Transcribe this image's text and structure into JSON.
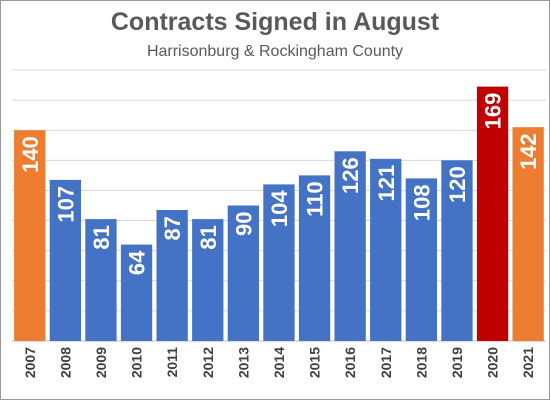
{
  "chart_data": {
    "type": "bar",
    "title": "Contracts Signed in August",
    "subtitle": "Harrisonburg & Rockingham County",
    "categories": [
      "2007",
      "2008",
      "2009",
      "2010",
      "2011",
      "2012",
      "2013",
      "2014",
      "2015",
      "2016",
      "2017",
      "2018",
      "2019",
      "2020",
      "2021"
    ],
    "values": [
      140,
      107,
      81,
      64,
      87,
      81,
      90,
      104,
      110,
      126,
      121,
      108,
      120,
      169,
      142
    ],
    "bar_colors": [
      "#ED7D31",
      "#4472C4",
      "#4472C4",
      "#4472C4",
      "#4472C4",
      "#4472C4",
      "#4472C4",
      "#4472C4",
      "#4472C4",
      "#4472C4",
      "#4472C4",
      "#4472C4",
      "#4472C4",
      "#C00000",
      "#ED7D31"
    ],
    "data_labels": true,
    "xlabel": "",
    "ylabel": "",
    "ylim": [
      0,
      180
    ],
    "grid": true,
    "legend": "none"
  }
}
